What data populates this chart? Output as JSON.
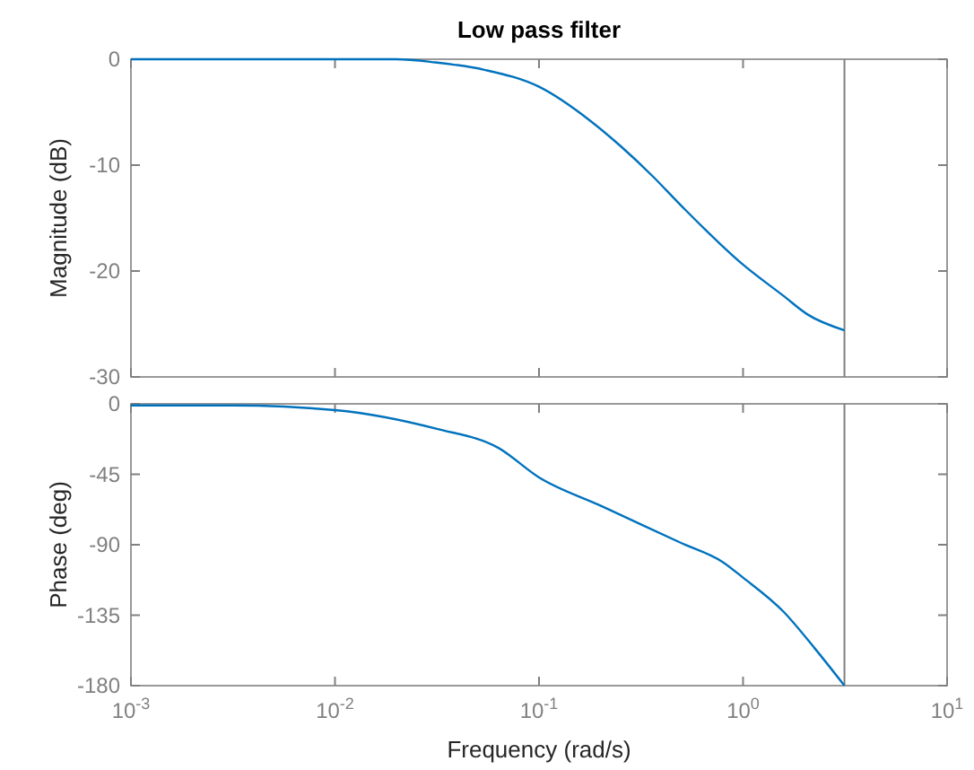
{
  "chart_data": [
    {
      "type": "line",
      "title": "Low pass filter",
      "ylabel": "Magnitude (dB)",
      "log": "x",
      "xlim": [
        0.001,
        10
      ],
      "xticks": [
        {
          "value": 0.001,
          "label": null
        },
        {
          "value": 0.01,
          "label": null
        },
        {
          "value": 0.1,
          "label": null
        },
        {
          "value": 1,
          "label": null
        },
        {
          "value": 10,
          "label": null
        }
      ],
      "ylim": [
        -30,
        0
      ],
      "yticks": [
        -30,
        -20,
        -10,
        0
      ],
      "tick_labels": "y",
      "grid": false,
      "x": [
        0.001,
        0.00316,
        0.01,
        0.02,
        0.031,
        0.054,
        0.1,
        0.178,
        0.251,
        0.363,
        0.479,
        1,
        1.567,
        2.07,
        3.14
      ],
      "series": [
        {
          "color": "#0072bd",
          "values": [
            0,
            0,
            0,
            0,
            -0.3,
            -1,
            -2.6,
            -5.8,
            -8.2,
            -11.1,
            -13.5,
            -19.4,
            -22.3,
            -24.1,
            -25.6
          ]
        }
      ],
      "ref_lines": [
        {
          "axis": "x",
          "value": 3.14,
          "color": "#808080"
        }
      ]
    },
    {
      "type": "line",
      "xlabel": "Frequency  (rad/s)",
      "ylabel": "Phase (deg)",
      "log": "x",
      "xlim": [
        0.001,
        10
      ],
      "xticks": [
        {
          "value": 0.001,
          "label": "10$^{-3}$"
        },
        {
          "value": 0.01,
          "label": "10$^{-2}$"
        },
        {
          "value": 0.1,
          "label": "10$^{-1}$"
        },
        {
          "value": 1,
          "label": "10$^{0}$"
        },
        {
          "value": 10,
          "label": "10$^{1}$"
        }
      ],
      "ylim": [
        -180,
        0
      ],
      "yticks": [
        -180,
        -135,
        -90,
        -45,
        0
      ],
      "grid": false,
      "x": [
        0.001,
        0.00316,
        0.01,
        0.0316,
        0.063,
        0.1,
        0.2,
        0.316,
        0.5,
        0.794,
        1,
        1.585,
        2.24,
        3.14
      ],
      "series": [
        {
          "color": "#0072bd",
          "values": [
            -1,
            -1,
            -4,
            -16,
            -28,
            -47,
            -65,
            -77,
            -89,
            -101,
            -111,
            -133,
            -156,
            -180
          ]
        }
      ],
      "ref_lines": [
        {
          "axis": "x",
          "value": 3.14,
          "color": "#808080"
        }
      ]
    }
  ]
}
